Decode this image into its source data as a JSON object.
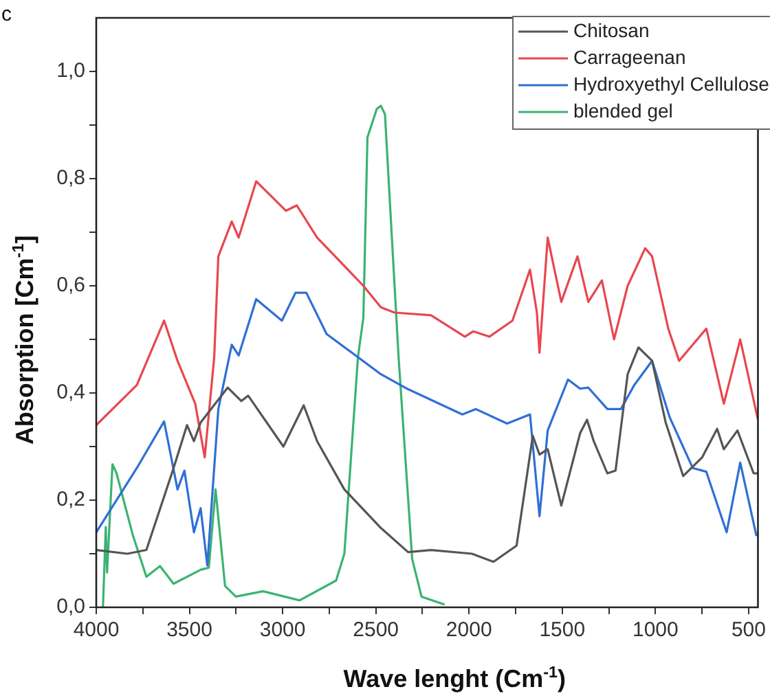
{
  "chart_data": {
    "type": "line",
    "title": "c",
    "xlabel": "Wave lenght (Cm$^{-1}$)",
    "ylabel": "Absorption [Cm$^{-1}$]",
    "xlim": [
      4000,
      450
    ],
    "ylim": [
      0,
      1.1
    ],
    "xticks": [
      4000,
      {
        "value": 3750,
        "label": null
      },
      3500,
      {
        "value": 3250,
        "label": null
      },
      3000,
      {
        "value": 2750,
        "label": null
      },
      2500,
      {
        "value": 2250,
        "label": null
      },
      2000,
      {
        "value": 1750,
        "label": null
      },
      1500,
      {
        "value": 1250,
        "label": null
      },
      1000,
      {
        "value": 750,
        "label": null
      },
      500
    ],
    "yticks": [
      {
        "value": 0,
        "label": "0,0"
      },
      {
        "value": 0.1,
        "label": null
      },
      {
        "value": 0.2,
        "label": "0,2"
      },
      {
        "value": 0.3,
        "label": null
      },
      {
        "value": 0.4,
        "label": "0,4"
      },
      {
        "value": 0.5,
        "label": null
      },
      {
        "value": 0.6,
        "label": "0,6"
      },
      {
        "value": 0.7,
        "label": null
      },
      {
        "value": 0.8,
        "label": "0,8"
      },
      {
        "value": 0.9,
        "label": null
      },
      {
        "value": 1.0,
        "label": "1,0"
      }
    ],
    "legend": "top right",
    "marker": "none",
    "line_style": "solid",
    "series": [
      {
        "name": "Chitosan",
        "color": "#555555",
        "x": [
          4000,
          3833,
          3731,
          3585,
          3513,
          3476,
          3440,
          3295,
          3222,
          3185,
          2996,
          2887,
          2815,
          2669,
          2473,
          2327,
          2204,
          1985,
          1869,
          1745,
          1658,
          1622,
          1578,
          1505,
          1404,
          1367,
          1331,
          1258,
          1214,
          1149,
          1091,
          1018,
          945,
          851,
          749,
          669,
          633,
          560,
          473,
          450
        ],
        "values": [
          0.107,
          0.1,
          0.107,
          0.26,
          0.34,
          0.31,
          0.345,
          0.41,
          0.385,
          0.395,
          0.3,
          0.377,
          0.31,
          0.22,
          0.148,
          0.103,
          0.107,
          0.1,
          0.085,
          0.115,
          0.32,
          0.285,
          0.295,
          0.19,
          0.325,
          0.35,
          0.31,
          0.25,
          0.255,
          0.435,
          0.485,
          0.46,
          0.345,
          0.245,
          0.28,
          0.333,
          0.295,
          0.33,
          0.25,
          0.25
        ]
      },
      {
        "name": "Carrageenan",
        "color": "#e8474f",
        "x": [
          4000,
          3782,
          3636,
          3564,
          3469,
          3418,
          3367,
          3345,
          3273,
          3236,
          3142,
          2982,
          2924,
          2815,
          2567,
          2473,
          2400,
          2204,
          2022,
          1978,
          1891,
          1767,
          1673,
          1636,
          1622,
          1578,
          1505,
          1418,
          1360,
          1287,
          1222,
          1149,
          1055,
          1018,
          931,
          873,
          727,
          633,
          545,
          450
        ],
        "values": [
          0.34,
          0.415,
          0.535,
          0.46,
          0.38,
          0.28,
          0.467,
          0.655,
          0.72,
          0.69,
          0.795,
          0.74,
          0.75,
          0.69,
          0.6,
          0.56,
          0.55,
          0.545,
          0.505,
          0.515,
          0.505,
          0.535,
          0.63,
          0.55,
          0.475,
          0.69,
          0.57,
          0.655,
          0.57,
          0.61,
          0.5,
          0.6,
          0.67,
          0.655,
          0.52,
          0.46,
          0.52,
          0.38,
          0.5,
          0.35
        ]
      },
      {
        "name": "Hydroxyethyl Cellulose",
        "color": "#2f6fd6",
        "x": [
          4000,
          3782,
          3636,
          3564,
          3527,
          3476,
          3440,
          3404,
          3345,
          3273,
          3236,
          3142,
          3004,
          2931,
          2873,
          2764,
          2473,
          2327,
          2036,
          1964,
          1796,
          1673,
          1622,
          1578,
          1469,
          1404,
          1360,
          1258,
          1185,
          1113,
          1018,
          924,
          800,
          727,
          618,
          545,
          458
        ],
        "values": [
          0.14,
          0.26,
          0.347,
          0.22,
          0.255,
          0.14,
          0.185,
          0.078,
          0.37,
          0.49,
          0.47,
          0.575,
          0.535,
          0.587,
          0.587,
          0.51,
          0.435,
          0.407,
          0.36,
          0.37,
          0.343,
          0.36,
          0.17,
          0.33,
          0.425,
          0.408,
          0.41,
          0.37,
          0.37,
          0.415,
          0.46,
          0.355,
          0.26,
          0.253,
          0.14,
          0.27,
          0.133
        ]
      },
      {
        "name": "blended gel",
        "color": "#3cb371",
        "x": [
          3964,
          3949,
          3942,
          3913,
          3891,
          3804,
          3731,
          3658,
          3585,
          3440,
          3396,
          3360,
          3309,
          3251,
          3105,
          2909,
          2713,
          2669,
          2596,
          2567,
          2545,
          2495,
          2473,
          2451,
          2378,
          2305,
          2255,
          2131
        ],
        "values": [
          0.0,
          0.15,
          0.065,
          0.267,
          0.25,
          0.135,
          0.057,
          0.077,
          0.044,
          0.07,
          0.074,
          0.22,
          0.04,
          0.02,
          0.03,
          0.013,
          0.05,
          0.1,
          0.467,
          0.54,
          0.877,
          0.93,
          0.936,
          0.92,
          0.467,
          0.09,
          0.02,
          0.005
        ]
      }
    ]
  }
}
